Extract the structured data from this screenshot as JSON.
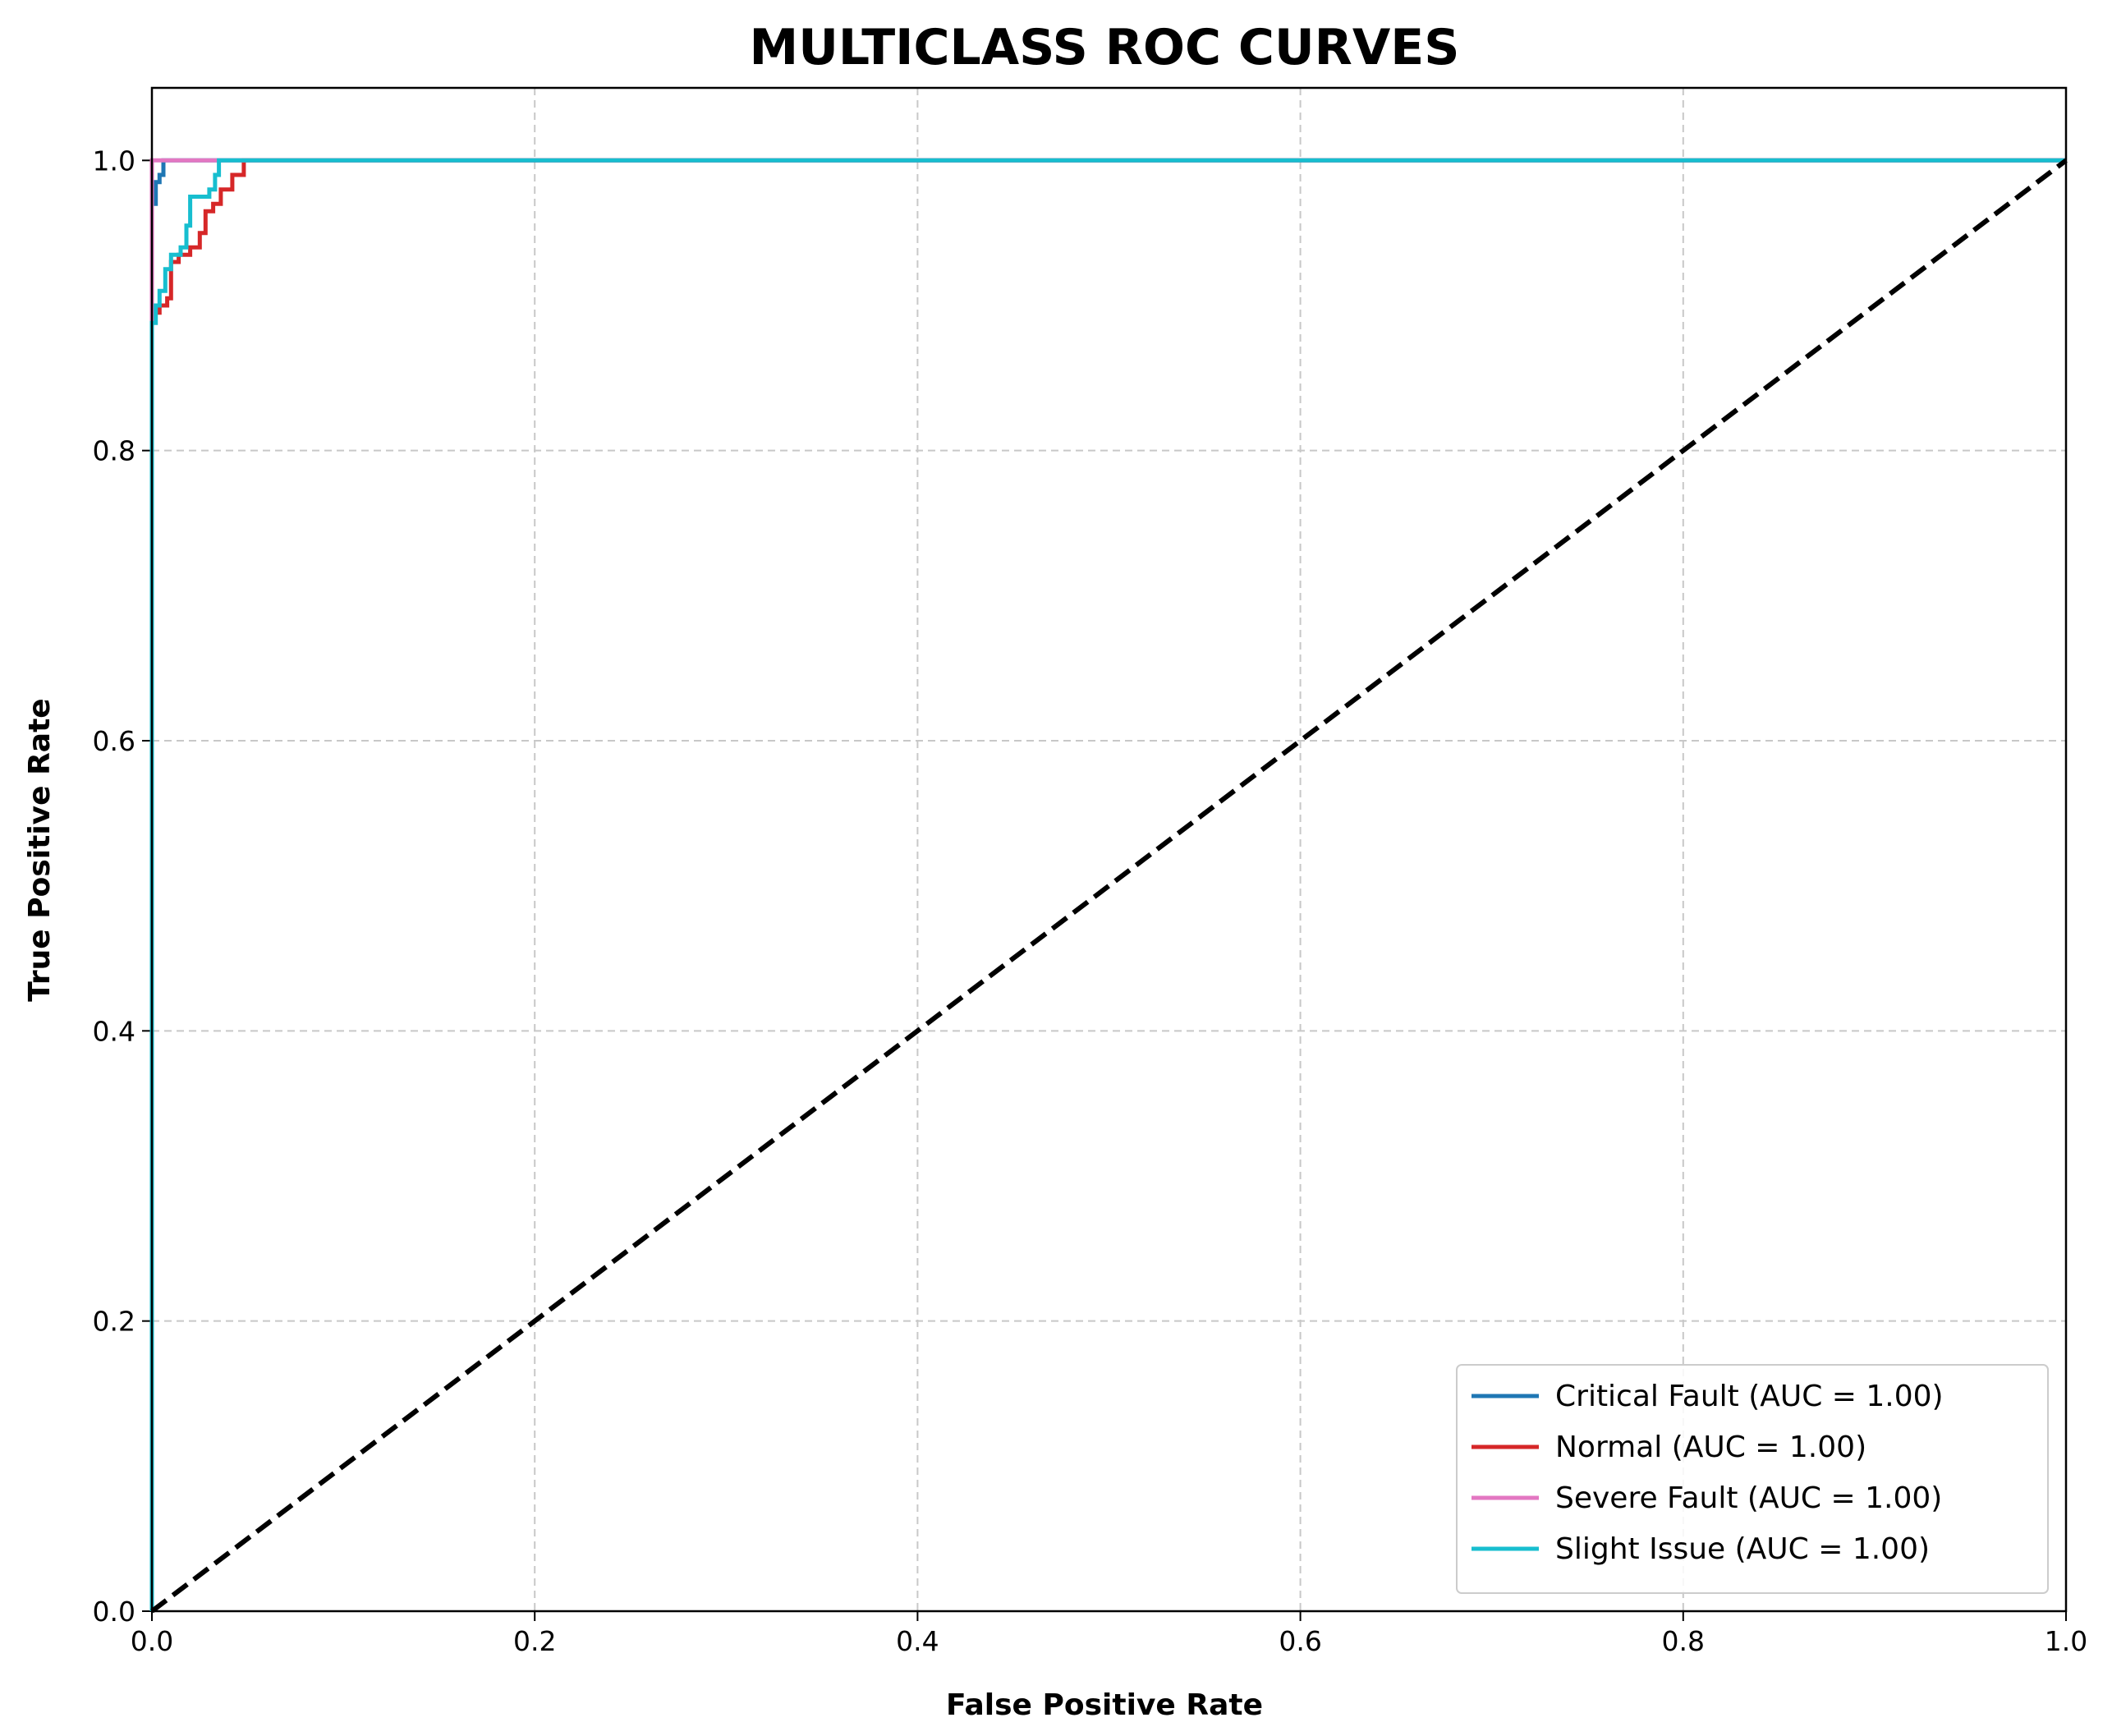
{
  "chart_data": {
    "type": "line",
    "title": "MULTICLASS ROC CURVES",
    "xlabel": "False Positive Rate",
    "ylabel": "True Positive Rate",
    "xlim": [
      0.0,
      1.0
    ],
    "ylim": [
      0.0,
      1.05
    ],
    "xticks": [
      "0.0",
      "0.2",
      "0.4",
      "0.6",
      "0.8",
      "1.0"
    ],
    "yticks": [
      "0.0",
      "0.2",
      "0.4",
      "0.6",
      "0.8",
      "1.0"
    ],
    "grid": true,
    "legend_position": "lower-right",
    "series": [
      {
        "name": "Critical Fault (AUC = 1.00)",
        "color": "#1f77b4",
        "x": [
          0.0,
          0.0,
          0.002,
          0.002,
          0.004,
          0.004,
          0.006,
          0.006,
          1.0
        ],
        "y": [
          0.0,
          0.97,
          0.97,
          0.985,
          0.985,
          0.99,
          0.99,
          1.0,
          1.0
        ]
      },
      {
        "name": "Normal (AUC = 1.00)",
        "color": "#d62728",
        "x": [
          0.0,
          0.0,
          0.004,
          0.004,
          0.008,
          0.008,
          0.01,
          0.01,
          0.014,
          0.014,
          0.02,
          0.02,
          0.025,
          0.025,
          0.028,
          0.028,
          0.032,
          0.032,
          0.036,
          0.036,
          0.042,
          0.042,
          0.048,
          0.048,
          1.0
        ],
        "y": [
          0.0,
          0.895,
          0.895,
          0.9,
          0.9,
          0.905,
          0.905,
          0.93,
          0.93,
          0.935,
          0.935,
          0.94,
          0.94,
          0.95,
          0.95,
          0.965,
          0.965,
          0.97,
          0.97,
          0.98,
          0.98,
          0.99,
          0.99,
          1.0,
          1.0
        ]
      },
      {
        "name": "Severe Fault (AUC = 1.00)",
        "color": "#e377c2",
        "x": [
          0.0,
          0.0,
          1.0
        ],
        "y": [
          0.0,
          1.0,
          1.0
        ]
      },
      {
        "name": "Slight Issue (AUC = 1.00)",
        "color": "#17becf",
        "x": [
          0.0,
          0.0,
          0.002,
          0.002,
          0.004,
          0.004,
          0.007,
          0.007,
          0.01,
          0.01,
          0.015,
          0.015,
          0.018,
          0.018,
          0.02,
          0.02,
          0.03,
          0.03,
          0.033,
          0.033,
          0.035,
          0.035,
          1.0
        ],
        "y": [
          0.0,
          0.888,
          0.888,
          0.9,
          0.9,
          0.91,
          0.91,
          0.925,
          0.925,
          0.935,
          0.935,
          0.94,
          0.94,
          0.955,
          0.955,
          0.975,
          0.975,
          0.98,
          0.98,
          0.99,
          0.99,
          1.0,
          1.0
        ]
      }
    ],
    "reference_line": {
      "color": "#000000",
      "style": "dashed",
      "x": [
        0.0,
        1.0
      ],
      "y": [
        0.0,
        1.0
      ]
    }
  }
}
